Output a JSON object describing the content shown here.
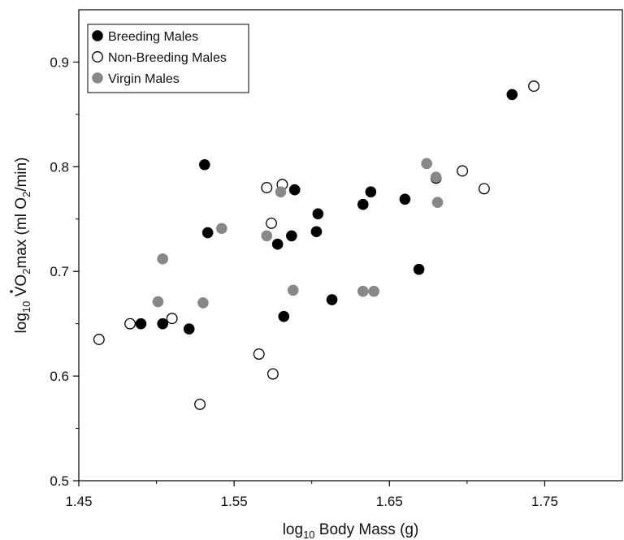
{
  "chart_data": {
    "type": "scatter",
    "title": "",
    "xlabel": {
      "prefix": "log",
      "sub": "10",
      "rest": " Body Mass (g)"
    },
    "ylabel": {
      "prefix": "log",
      "sub": "10",
      "v": "V",
      "o": "O",
      "o_sub": "2",
      "mid": "max (ml O",
      "mid_sub": "2",
      "end": "/min)"
    },
    "xlim": [
      1.45,
      1.8
    ],
    "ylim": [
      0.5,
      0.95
    ],
    "x_ticks": [
      1.45,
      1.55,
      1.65,
      1.75
    ],
    "x_tick_labels": [
      "1.45",
      "1.55",
      "1.65",
      "1.75"
    ],
    "y_ticks": [
      0.5,
      0.6,
      0.7,
      0.8,
      0.9
    ],
    "y_tick_labels": [
      "0.5",
      "0.6",
      "0.7",
      "0.8",
      "0.9"
    ],
    "grid": false,
    "legend_position": "top-left",
    "series": [
      {
        "name": "Breeding Males",
        "marker": "filled",
        "color": "#000000",
        "points": [
          [
            1.49,
            0.65
          ],
          [
            1.504,
            0.65
          ],
          [
            1.521,
            0.645
          ],
          [
            1.531,
            0.802
          ],
          [
            1.533,
            0.737
          ],
          [
            1.578,
            0.726
          ],
          [
            1.582,
            0.657
          ],
          [
            1.587,
            0.734
          ],
          [
            1.589,
            0.778
          ],
          [
            1.603,
            0.738
          ],
          [
            1.604,
            0.755
          ],
          [
            1.613,
            0.673
          ],
          [
            1.633,
            0.764
          ],
          [
            1.638,
            0.776
          ],
          [
            1.66,
            0.769
          ],
          [
            1.669,
            0.702
          ],
          [
            1.68,
            0.789
          ],
          [
            1.729,
            0.869
          ]
        ]
      },
      {
        "name": "Non-Breeding Males",
        "marker": "open",
        "color": "#000000",
        "points": [
          [
            1.463,
            0.635
          ],
          [
            1.483,
            0.65
          ],
          [
            1.51,
            0.655
          ],
          [
            1.528,
            0.573
          ],
          [
            1.566,
            0.621
          ],
          [
            1.571,
            0.78
          ],
          [
            1.574,
            0.746
          ],
          [
            1.575,
            0.602
          ],
          [
            1.581,
            0.783
          ],
          [
            1.697,
            0.796
          ],
          [
            1.711,
            0.779
          ],
          [
            1.743,
            0.877
          ]
        ]
      },
      {
        "name": "Virgin Males",
        "marker": "filled",
        "color": "#888888",
        "points": [
          [
            1.501,
            0.671
          ],
          [
            1.504,
            0.712
          ],
          [
            1.53,
            0.67
          ],
          [
            1.542,
            0.741
          ],
          [
            1.571,
            0.734
          ],
          [
            1.58,
            0.776
          ],
          [
            1.588,
            0.682
          ],
          [
            1.633,
            0.681
          ],
          [
            1.64,
            0.681
          ],
          [
            1.674,
            0.803
          ],
          [
            1.68,
            0.79
          ],
          [
            1.681,
            0.766
          ]
        ]
      }
    ]
  }
}
